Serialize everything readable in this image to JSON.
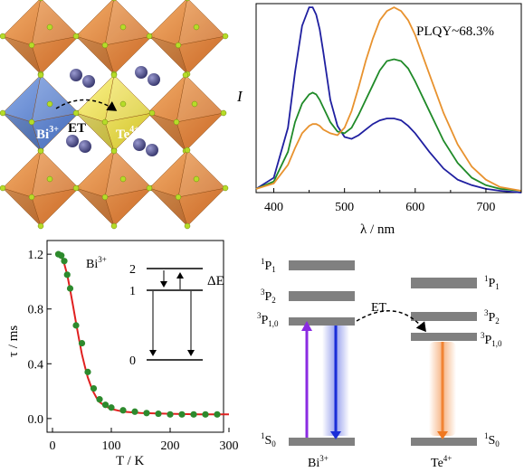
{
  "panel_a": {
    "labels": {
      "bi": "Bi",
      "bi_sup": "3+",
      "et": "ET",
      "te": "Te",
      "te_sup": "4+"
    },
    "colors": {
      "octahedron": "#e6883a",
      "bi_octahedron": "#5a82cc",
      "te_octahedron": "#e6dc3c",
      "vertex": "#b6dc28",
      "cation": "#4a4a80"
    }
  },
  "chart_data": [
    {
      "type": "line",
      "xlabel": "λ / nm",
      "ylabel": "I",
      "annotation": "PLQY~68.3%",
      "xlim": [
        375,
        750
      ],
      "ylim": [
        0,
        1.02
      ],
      "xticks": [
        400,
        500,
        600,
        700
      ],
      "series": [
        {
          "color": "#1f1fa0",
          "x": [
            375,
            400,
            420,
            430,
            440,
            450,
            455,
            460,
            465,
            470,
            480,
            490,
            500,
            510,
            520,
            530,
            540,
            550,
            560,
            570,
            580,
            590,
            600,
            620,
            640,
            660,
            680,
            700,
            720,
            750
          ],
          "y": [
            0.02,
            0.08,
            0.35,
            0.65,
            0.9,
            1.0,
            1.0,
            0.96,
            0.88,
            0.76,
            0.5,
            0.36,
            0.3,
            0.29,
            0.31,
            0.34,
            0.37,
            0.39,
            0.4,
            0.4,
            0.39,
            0.36,
            0.32,
            0.22,
            0.13,
            0.07,
            0.04,
            0.02,
            0.01,
            0.0
          ]
        },
        {
          "color": "#1f8a28",
          "x": [
            375,
            400,
            420,
            430,
            440,
            450,
            455,
            460,
            465,
            470,
            480,
            490,
            500,
            510,
            520,
            530,
            540,
            550,
            560,
            570,
            580,
            590,
            600,
            620,
            640,
            660,
            680,
            700,
            720,
            750
          ],
          "y": [
            0.02,
            0.06,
            0.22,
            0.38,
            0.48,
            0.53,
            0.54,
            0.53,
            0.5,
            0.46,
            0.38,
            0.33,
            0.32,
            0.35,
            0.42,
            0.5,
            0.58,
            0.66,
            0.71,
            0.72,
            0.71,
            0.67,
            0.6,
            0.44,
            0.28,
            0.16,
            0.08,
            0.04,
            0.02,
            0.01
          ]
        },
        {
          "color": "#e8922e",
          "x": [
            375,
            400,
            420,
            430,
            440,
            450,
            455,
            460,
            465,
            470,
            480,
            490,
            500,
            510,
            520,
            530,
            540,
            550,
            560,
            570,
            580,
            590,
            600,
            620,
            640,
            660,
            680,
            700,
            720,
            750
          ],
          "y": [
            0.02,
            0.05,
            0.15,
            0.24,
            0.32,
            0.36,
            0.37,
            0.37,
            0.36,
            0.34,
            0.32,
            0.31,
            0.35,
            0.44,
            0.57,
            0.71,
            0.83,
            0.93,
            0.98,
            1.0,
            0.98,
            0.93,
            0.85,
            0.64,
            0.43,
            0.26,
            0.14,
            0.07,
            0.03,
            0.01
          ]
        }
      ]
    },
    {
      "type": "scatter",
      "xlabel": "T / K",
      "ylabel": "τ / ms",
      "annotation": "Bi",
      "annotation_sup": "3+",
      "xlim": [
        0,
        300
      ],
      "ylim": [
        -0.1,
        1.3
      ],
      "xticks": [
        0,
        100,
        200,
        300
      ],
      "yticks": [
        0.0,
        0.4,
        0.8,
        1.2
      ],
      "points": {
        "color": "#2d8a2d",
        "x": [
          10,
          15,
          20,
          25,
          30,
          40,
          50,
          60,
          70,
          80,
          90,
          100,
          120,
          140,
          160,
          180,
          200,
          220,
          240,
          260,
          280
        ],
        "y": [
          1.2,
          1.19,
          1.15,
          1.05,
          0.95,
          0.68,
          0.55,
          0.34,
          0.22,
          0.14,
          0.1,
          0.08,
          0.06,
          0.05,
          0.04,
          0.035,
          0.03,
          0.03,
          0.03,
          0.03,
          0.03
        ]
      },
      "fit": {
        "color": "#e02020",
        "x": [
          5,
          10,
          15,
          20,
          25,
          30,
          35,
          40,
          45,
          50,
          55,
          60,
          65,
          70,
          75,
          80,
          90,
          100,
          120,
          150,
          200,
          250,
          300
        ],
        "y": [
          1.21,
          1.2,
          1.18,
          1.13,
          1.05,
          0.94,
          0.82,
          0.7,
          0.58,
          0.47,
          0.38,
          0.3,
          0.24,
          0.19,
          0.15,
          0.12,
          0.09,
          0.07,
          0.05,
          0.04,
          0.035,
          0.03,
          0.03
        ]
      },
      "inset": {
        "level_2": "2",
        "level_1": "1",
        "level_0": "0",
        "delta": "ΔE"
      }
    }
  ],
  "panel_d": {
    "bi_levels": {
      "p1": "P",
      "p1_sup": "1",
      "p1_sub": "1",
      "p2": "P",
      "p2_sup": "3",
      "p2_sub": "2",
      "p10": "P",
      "p10_sup": "3",
      "p10_sub": "1,0",
      "s0": "S",
      "s0_sup": "1",
      "s0_sub": "0"
    },
    "te_levels": {
      "p1": "P",
      "p1_sup": "1",
      "p1_sub": "1",
      "p2": "P",
      "p2_sup": "3",
      "p2_sub": "2",
      "p10": "P",
      "p10_sup": "3",
      "p10_sub": "1,0",
      "s0": "S",
      "s0_sup": "1",
      "s0_sub": "0"
    },
    "et": "ET",
    "bi_name": "Bi",
    "bi_sup": "3+",
    "te_name": "Te",
    "te_sup": "4+",
    "colors": {
      "level": "#808080",
      "absorption": "#8a2be2",
      "bi_emission": "#1a2ed8",
      "te_emission": "#f07820"
    }
  }
}
